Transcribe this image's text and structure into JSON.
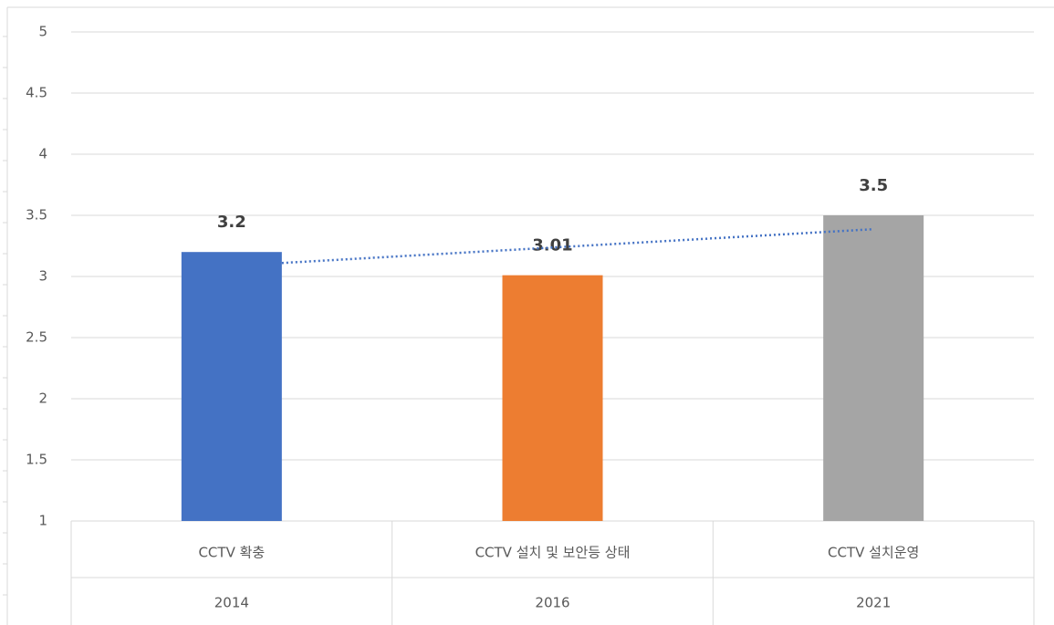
{
  "chart_data": {
    "type": "bar",
    "categories": [
      "CCTV 확충",
      "CCTV 설치 및 보안등 상태",
      "CCTV 설치운영"
    ],
    "years": [
      "2014",
      "2016",
      "2021"
    ],
    "values": [
      3.2,
      3.01,
      3.5
    ],
    "colors": [
      "#4472c4",
      "#ed7d31",
      "#a5a5a5"
    ],
    "ylim": [
      1,
      5
    ],
    "yticks": [
      1,
      1.5,
      2,
      2.5,
      3,
      3.5,
      4,
      4.5,
      5
    ],
    "grid": true,
    "trendline": {
      "type": "linear",
      "color": "#4472c4"
    }
  }
}
